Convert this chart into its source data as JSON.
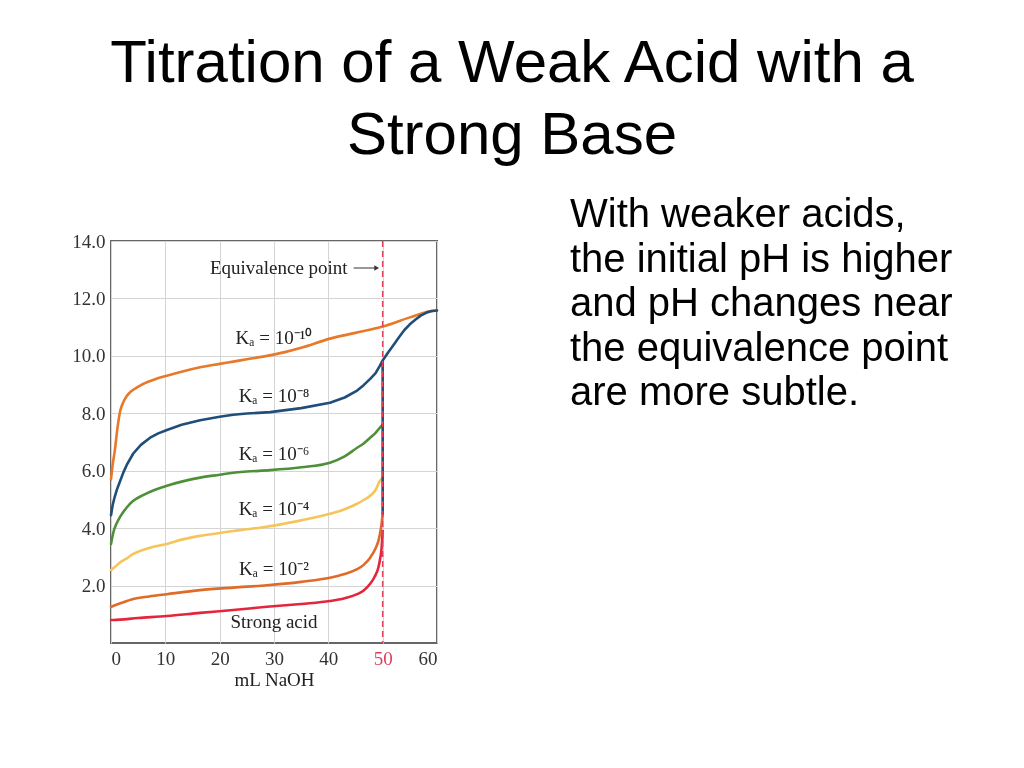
{
  "chart_data": {
    "type": "line",
    "title": "Titration of a Weak Acid with a Strong Base",
    "xlabel": "mL NaOH",
    "annotations": [
      "With weaker acids, the initial pH is higher and pH changes near the equivalence point are more subtle."
    ],
    "xlim": [
      0,
      60
    ],
    "xticks": [
      0,
      10,
      20,
      30,
      40,
      50,
      60
    ],
    "ylim": [
      0,
      14
    ],
    "yticks": [
      {
        "value": 2,
        "label": "2.0"
      },
      {
        "value": 4,
        "label": "4.0"
      },
      {
        "value": 6,
        "label": "6.0"
      },
      {
        "value": 8,
        "label": "8.0"
      },
      {
        "value": 10,
        "label": "10.0"
      },
      {
        "value": 12,
        "label": "12.0"
      },
      {
        "value": 14,
        "label": "14.0"
      }
    ],
    "grid": true,
    "legend": false,
    "ref_lines": [
      {
        "axis": "x",
        "value": 50,
        "label": "Equivalence point",
        "color": "#e0405a",
        "line_style": "dashed"
      }
    ],
    "series": [
      {
        "name": "Kₐ = 10⁻¹⁰",
        "color": "#e8782a",
        "x": [
          0,
          0.3,
          0.7,
          1.2,
          1.7,
          2.3,
          2.9,
          3.8,
          4.8,
          5.9,
          8,
          10.3,
          13,
          16.4,
          20,
          22.5,
          25,
          28.7,
          32,
          35,
          40.3,
          45,
          50,
          55,
          58.7,
          60
        ],
        "values": [
          5.7,
          6.2,
          6.7,
          7.5,
          8.09,
          8.4,
          8.6,
          8.78,
          8.9,
          9.02,
          9.18,
          9.31,
          9.45,
          9.6,
          9.72,
          9.8,
          9.88,
          10.0,
          10.13,
          10.28,
          10.6,
          10.8,
          11.02,
          11.34,
          11.55,
          11.58
        ]
      },
      {
        "name": "Kₐ = 10⁻⁶",
        "color": "#4f8f3a",
        "x": [
          0,
          0.5,
          1,
          1.7,
          2.9,
          4.1,
          5.9,
          8,
          10.3,
          13,
          16.4,
          20,
          22.5,
          25,
          29.3,
          35,
          40.3,
          43,
          45.3,
          46.5,
          47.7,
          48.7,
          49.5,
          50
        ],
        "values": [
          3.45,
          3.9,
          4.15,
          4.4,
          4.72,
          4.95,
          5.15,
          5.33,
          5.48,
          5.62,
          5.76,
          5.86,
          5.93,
          5.97,
          6.02,
          6.12,
          6.28,
          6.5,
          6.8,
          6.95,
          7.15,
          7.32,
          7.5,
          7.6
        ]
      },
      {
        "name": "Kₐ = 10⁻⁴",
        "color": "#f5c55c",
        "x": [
          0,
          0.4,
          1.5,
          2.9,
          4.1,
          6,
          8,
          10.3,
          13,
          16.4,
          20,
          22.5,
          25,
          28.7,
          32,
          35,
          40.3,
          43,
          45.3,
          46.5,
          47.7,
          48.7,
          49.5,
          50
        ],
        "values": [
          2.55,
          2.6,
          2.78,
          2.95,
          3.1,
          3.25,
          3.36,
          3.45,
          3.6,
          3.73,
          3.83,
          3.9,
          3.96,
          4.05,
          4.16,
          4.27,
          4.5,
          4.66,
          4.85,
          4.98,
          5.13,
          5.33,
          5.65,
          5.75
        ]
      },
      {
        "name": "Kₐ = 10⁻²",
        "color": "#e06b28",
        "x": [
          0,
          0.4,
          2,
          4.1,
          7,
          10.3,
          16.4,
          22.5,
          28.7,
          35,
          40.3,
          43,
          45.3,
          46.5,
          47.7,
          48.7,
          49.2,
          49.5,
          49.8,
          50
        ],
        "values": [
          1.26,
          1.29,
          1.4,
          1.53,
          1.62,
          1.7,
          1.84,
          1.93,
          2.01,
          2.13,
          2.27,
          2.4,
          2.57,
          2.72,
          2.97,
          3.3,
          3.55,
          3.8,
          4.15,
          4.5
        ]
      },
      {
        "name": "Strong acid",
        "color": "#e3263c",
        "x": [
          0,
          0.4,
          5,
          10.3,
          16.4,
          22.5,
          28.7,
          35,
          40.3,
          43,
          45.3,
          46.5,
          47.7,
          48.5,
          49.2,
          49.5,
          49.8,
          50
        ],
        "values": [
          0.8,
          0.8,
          0.87,
          0.94,
          1.05,
          1.15,
          1.26,
          1.36,
          1.46,
          1.56,
          1.7,
          1.83,
          2.06,
          2.3,
          2.62,
          2.9,
          3.3,
          3.9
        ]
      },
      {
        "name": "Kₐ = 10⁻⁸",
        "color": "#1f4e79",
        "x": [
          0,
          0.3,
          0.7,
          1.1,
          1.7,
          2.3,
          2.9,
          4.1,
          5.5,
          7.2,
          8.7,
          10.3,
          13,
          16.4,
          20,
          22.5,
          25,
          29.3,
          35,
          40.3,
          43,
          45.3,
          46.5,
          47.7,
          48.7,
          49.5,
          50,
          50,
          50,
          50.5,
          51,
          52,
          53,
          54,
          55,
          56,
          57,
          58,
          59,
          60
        ],
        "values": [
          4.45,
          4.8,
          5.1,
          5.35,
          5.65,
          5.95,
          6.2,
          6.6,
          6.9,
          7.15,
          7.3,
          7.42,
          7.6,
          7.76,
          7.88,
          7.95,
          7.99,
          8.04,
          8.18,
          8.37,
          8.55,
          8.79,
          8.98,
          9.2,
          9.4,
          9.66,
          9.84,
          4.5,
          9.84,
          9.98,
          10.12,
          10.38,
          10.65,
          10.9,
          11.1,
          11.26,
          11.4,
          11.5,
          11.56,
          11.58
        ]
      }
    ]
  }
}
